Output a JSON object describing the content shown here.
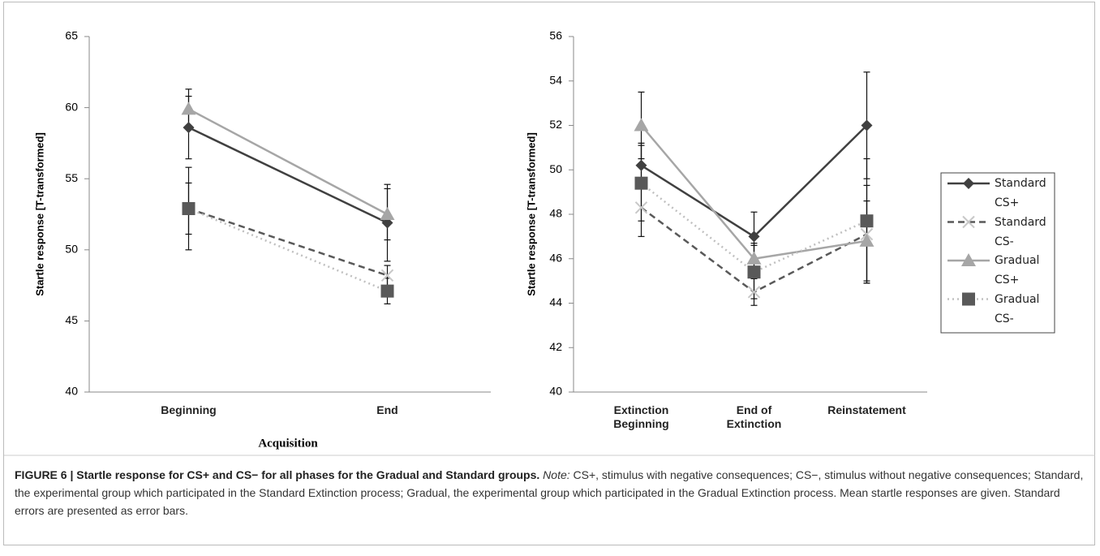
{
  "chart_data": [
    {
      "type": "line",
      "y_label": "Startle response [T-transformed]",
      "x_label": "Acquisition",
      "categories": [
        "Beginning",
        "End"
      ],
      "ylim": [
        40,
        65
      ],
      "yticks": [
        40,
        45,
        50,
        55,
        60,
        65
      ],
      "legend": false,
      "series": [
        {
          "name": "Standard CS+",
          "color": "#404040",
          "marker_color": "#404040",
          "dash": "solid",
          "marker": "diamond",
          "values": [
            58.6,
            51.9
          ],
          "errors": [
            2.2,
            2.7
          ]
        },
        {
          "name": "Standard CS-",
          "color": "#595959",
          "marker_color": "#c8c8c8",
          "dash": "dashed",
          "marker": "x",
          "values": [
            52.9,
            48.2
          ],
          "errors": [
            2.9,
            0.7
          ]
        },
        {
          "name": "Gradual CS+",
          "color": "#a6a6a6",
          "marker_color": "#a6a6a6",
          "dash": "solid",
          "marker": "triangle",
          "values": [
            59.9,
            52.5
          ],
          "errors": [
            1.4,
            1.8
          ]
        },
        {
          "name": "Gradual CS-",
          "color": "#c0c0c0",
          "marker_color": "#595959",
          "dash": "dotted",
          "marker": "square",
          "values": [
            52.9,
            47.1
          ],
          "errors": [
            1.8,
            0.9
          ]
        }
      ]
    },
    {
      "type": "line",
      "y_label": "Startle response [T-transformed]",
      "categories": [
        "Extinction Beginning",
        "End of Extinction",
        "Reinstatement"
      ],
      "ylim": [
        40,
        56
      ],
      "yticks": [
        40,
        42,
        44,
        46,
        48,
        50,
        52,
        54,
        56
      ],
      "legend": "right",
      "series": [
        {
          "name": "Standard CS+",
          "color": "#404040",
          "marker_color": "#404040",
          "dash": "solid",
          "marker": "diamond",
          "values": [
            50.2,
            47.0,
            52.0
          ],
          "errors": [
            1.0,
            1.1,
            2.4
          ]
        },
        {
          "name": "Standard CS-",
          "color": "#595959",
          "marker_color": "#c8c8c8",
          "dash": "dashed",
          "marker": "x",
          "values": [
            48.3,
            44.5,
            47.1
          ],
          "errors": [
            1.3,
            0.6,
            2.2
          ]
        },
        {
          "name": "Gradual CS+",
          "color": "#a6a6a6",
          "marker_color": "#a6a6a6",
          "dash": "solid",
          "marker": "triangle",
          "values": [
            52.0,
            46.0,
            46.8
          ],
          "errors": [
            1.5,
            0.7,
            1.8
          ]
        },
        {
          "name": "Gradual CS-",
          "color": "#c0c0c0",
          "marker_color": "#595959",
          "dash": "dotted",
          "marker": "square",
          "values": [
            49.4,
            45.4,
            47.7
          ],
          "errors": [
            1.7,
            1.2,
            2.8
          ]
        }
      ]
    }
  ],
  "caption": {
    "label": "FIGURE 6 | Startle response for CS+ and CS− for all phases for the Gradual and Standard groups.",
    "note_label": "Note:",
    "text": "CS+, stimulus with negative consequences; CS−, stimulus without negative consequences; Standard, the experimental group which participated in the Standard Extinction process; Gradual, the experimental group which participated in the Gradual Extinction process. Mean startle responses are given. Standard errors are presented as error bars."
  }
}
